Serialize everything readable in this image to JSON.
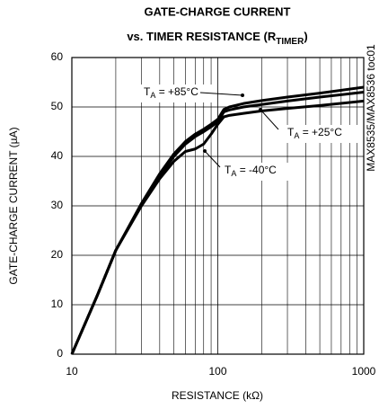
{
  "chart_data": {
    "type": "line",
    "title": {
      "line1": "GATE-CHARGE CURRENT",
      "line2": "vs. TIMER RESISTANCE (R",
      "sub": "TIMER",
      "end": ")"
    },
    "xlabel": "RESISTANCE (kΩ)",
    "ylabel": "GATE-CHARGE CURRENT (µA)",
    "side_note": "MAX8535/MAX8536 toc01",
    "x": [
      10,
      15,
      20,
      30,
      40,
      50,
      60,
      70,
      80,
      90,
      100,
      110,
      120,
      150,
      200,
      300,
      500,
      1000
    ],
    "series": [
      {
        "label": {
          "base": "T",
          "sub": "A",
          "text": " = +85°C"
        },
        "color": "#000000",
        "values": [
          0,
          12,
          21,
          30.5,
          36.5,
          40.5,
          43,
          44.5,
          45.5,
          46.5,
          47.5,
          49.5,
          50,
          50.7,
          51.3,
          52,
          52.8,
          54
        ]
      },
      {
        "label": {
          "base": "T",
          "sub": "A",
          "text": " = +25°C"
        },
        "color": "#000000",
        "values": [
          0,
          12,
          21,
          30.3,
          36,
          40,
          42.5,
          44,
          45,
          46,
          47,
          49,
          49.4,
          50,
          50.5,
          51.2,
          52,
          53
        ]
      },
      {
        "label": {
          "base": "T",
          "sub": "A",
          "text": " = -40°C"
        },
        "color": "#000000",
        "values": [
          0,
          12,
          21,
          30,
          35.5,
          39,
          41,
          41.5,
          42.5,
          44.5,
          46.5,
          48,
          48.3,
          48.7,
          49.2,
          49.7,
          50.3,
          51.2
        ]
      }
    ],
    "xscale": "log",
    "xlim": [
      10,
      1000
    ],
    "xticks": [
      10,
      100,
      1000
    ],
    "xminor": [
      20,
      30,
      40,
      50,
      60,
      70,
      80,
      90,
      200,
      300,
      400,
      500,
      600,
      700,
      800,
      900
    ],
    "ylim": [
      0,
      60
    ],
    "yticks": [
      0,
      10,
      20,
      30,
      40,
      50,
      60
    ],
    "grid": true
  }
}
